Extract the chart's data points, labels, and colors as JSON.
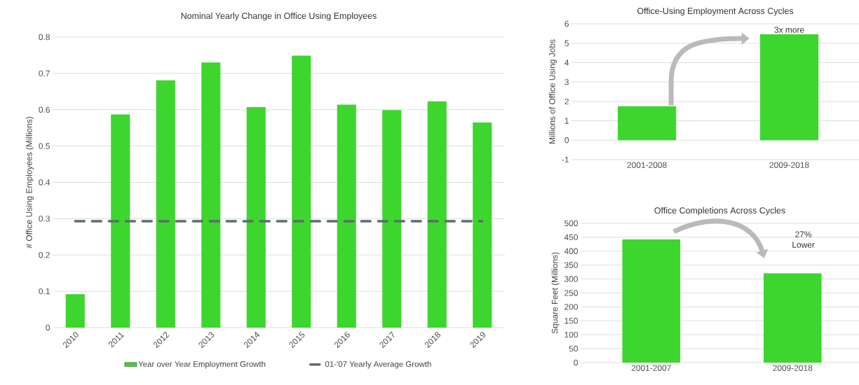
{
  "chart_data": [
    {
      "type": "bar",
      "title": "Nominal Yearly Change in Office Using Employees",
      "ylabel": "# Office Using Employees (Millions)",
      "categories": [
        "2010",
        "2011",
        "2012",
        "2013",
        "2014",
        "2015",
        "2016",
        "2017",
        "2018",
        "2019"
      ],
      "series": [
        {
          "name": "Year over Year Employment Growth",
          "type": "bar",
          "color": "#3dd62f",
          "values": [
            0.092,
            0.587,
            0.681,
            0.73,
            0.607,
            0.749,
            0.614,
            0.599,
            0.623,
            0.565
          ]
        },
        {
          "name": "01-'07 Yearly Average Growth",
          "type": "line",
          "color": "#5f6b6d",
          "line_style": "dashed",
          "values": [
            0.293,
            0.293,
            0.293,
            0.293,
            0.293,
            0.293,
            0.293,
            0.293,
            0.293,
            0.293
          ]
        }
      ],
      "ylim": [
        0,
        0.8
      ],
      "yticks": [
        0,
        0.1,
        0.2,
        0.3,
        0.4,
        0.5,
        0.6,
        0.7,
        0.8
      ],
      "grid": "y",
      "legend": "bottom"
    },
    {
      "type": "bar",
      "title": "Office-Using Employment Across Cycles",
      "ylabel": "Millions  of Office Using Jobs",
      "categories": [
        "2001-2008",
        "2009-2018"
      ],
      "values": [
        1.75,
        5.46
      ],
      "color": "#3dd62f",
      "ylim": [
        -1,
        6
      ],
      "yticks": [
        -1,
        0,
        1,
        2,
        3,
        4,
        5,
        6
      ],
      "grid": "y",
      "annotations": [
        {
          "text": "3x more",
          "x": "2009-2018",
          "y": 5.46
        }
      ]
    },
    {
      "type": "bar",
      "title": "Office Completions Across Cycles",
      "ylabel": "Square Feet (Millions)",
      "categories": [
        "2001-2007",
        "2009-2018"
      ],
      "values": [
        442,
        320
      ],
      "color": "#3dd62f",
      "ylim": [
        0,
        500
      ],
      "yticks": [
        0,
        50,
        100,
        150,
        200,
        250,
        300,
        350,
        400,
        450,
        500
      ],
      "grid": "y",
      "annotations": [
        "27% Lower"
      ]
    }
  ]
}
